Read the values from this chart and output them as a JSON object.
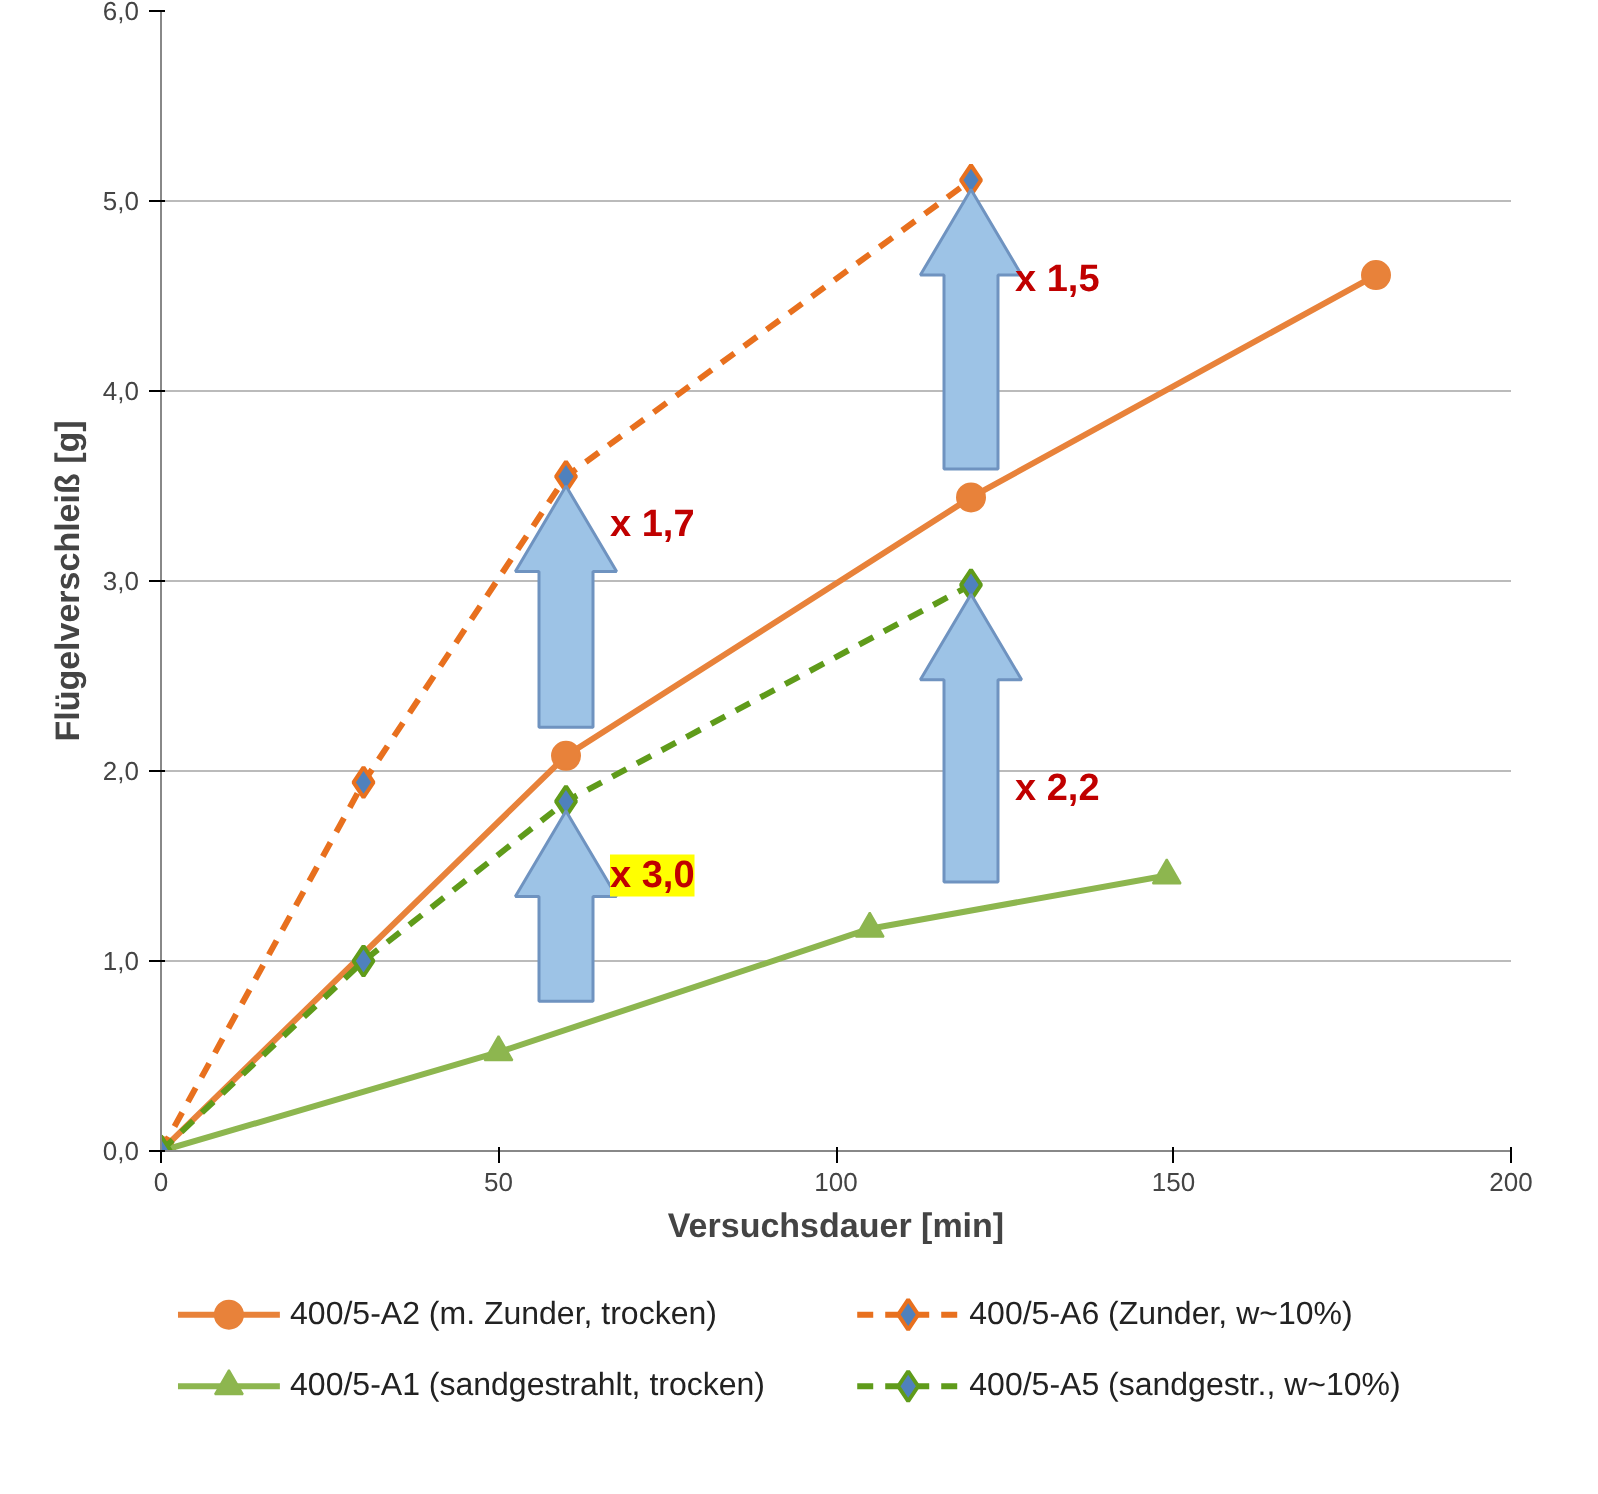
{
  "chart_data": {
    "type": "line",
    "xlabel": "Versuchsdauer [min]",
    "ylabel": "Flügelverschleiß [g]",
    "xlim": [
      0,
      200
    ],
    "xticks": [
      0,
      50,
      100,
      150,
      200
    ],
    "ylim": [
      0,
      6
    ],
    "yticks": [
      {
        "value": 0,
        "label": "0,0"
      },
      {
        "value": 1,
        "label": "1,0"
      },
      {
        "value": 2,
        "label": "2,0"
      },
      {
        "value": 3,
        "label": "3,0"
      },
      {
        "value": 4,
        "label": "4,0"
      },
      {
        "value": 5,
        "label": "5,0"
      },
      {
        "value": 6,
        "label": "6,0"
      }
    ],
    "grid": "y",
    "legend": "bottom",
    "series": [
      {
        "name": "400/5-A2 (m. Zunder, trocken)",
        "color": "#e8823a",
        "marker": "circle",
        "line_style": "solid",
        "x": [
          0,
          60,
          120,
          180
        ],
        "values": [
          0,
          2.08,
          3.44,
          4.61
        ]
      },
      {
        "name": "400/5-A6 (Zunder, w~10%)",
        "color": "#e8701e",
        "marker": "diamond",
        "line_style": "dashed",
        "x": [
          0,
          30,
          60,
          120
        ],
        "values": [
          0,
          1.94,
          3.55,
          5.11
        ]
      },
      {
        "name": "400/5-A1 (sandgestrahlt, trocken)",
        "color": "#8db64f",
        "marker": "triangle",
        "line_style": "solid",
        "x": [
          0,
          50,
          105,
          149
        ],
        "values": [
          0,
          0.52,
          1.17,
          1.45
        ]
      },
      {
        "name": "400/5-A5 (sandgestr., w~10%)",
        "color": "#5f9b1a",
        "marker": "diamond",
        "line_style": "dashed",
        "x": [
          0,
          30,
          60,
          120
        ],
        "values": [
          0,
          1.0,
          1.84,
          2.98
        ]
      }
    ],
    "annotations": [
      "x 1,7",
      "x 1,5",
      "x 2,2",
      "x 3,0"
    ]
  }
}
